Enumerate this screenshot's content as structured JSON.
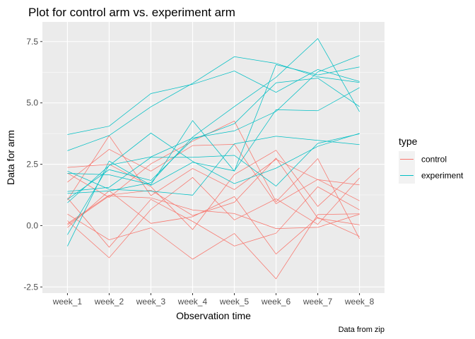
{
  "chart_data": {
    "type": "line",
    "title": "Plot for control arm vs. experiment arm",
    "xlabel": "Observation time",
    "ylabel": "Data for arm",
    "caption": "Data from zip",
    "categories": [
      "week_1",
      "week_2",
      "week_3",
      "week_4",
      "week_5",
      "week_6",
      "week_7",
      "week_8"
    ],
    "ylim": [
      -2.75,
      8.3
    ],
    "yticks": [
      -2.5,
      0.0,
      2.5,
      5.0,
      7.5
    ],
    "ytick_labels": [
      "-2.5",
      "0.0",
      "2.5",
      "5.0",
      "7.5"
    ],
    "grid": true,
    "legend": {
      "title": "type",
      "position": "right",
      "entries": [
        {
          "label": "control",
          "color": "#F8766D"
        },
        {
          "label": "experiment",
          "color": "#00BFC4"
        }
      ]
    },
    "series": [
      {
        "group": "control",
        "values": [
          0.2,
          -1.31,
          0.66,
          1.96,
          0.23,
          1.09,
          0.05,
          1.94
        ]
      },
      {
        "group": "control",
        "values": [
          1.13,
          -0.88,
          1.07,
          0.17,
          -0.83,
          -0.31,
          1.58,
          0.64
        ]
      },
      {
        "group": "control",
        "values": [
          1.77,
          3.11,
          2.22,
          3.26,
          3.31,
          0.89,
          1.88,
          1.01
        ]
      },
      {
        "group": "control",
        "values": [
          1.04,
          3.66,
          1.22,
          2.33,
          1.47,
          2.7,
          1.87,
          1.66
        ]
      },
      {
        "group": "control",
        "values": [
          0.47,
          -0.58,
          -0.09,
          -1.37,
          -0.32,
          -2.17,
          0.45,
          0.48
        ]
      },
      {
        "group": "control",
        "values": [
          2.37,
          2.5,
          1.59,
          -0.16,
          2.08,
          3.07,
          0.78,
          2.35
        ]
      },
      {
        "group": "control",
        "values": [
          0.03,
          1.21,
          1.13,
          0.64,
          0.49,
          -0.12,
          -0.07,
          0.46
        ]
      },
      {
        "group": "control",
        "values": [
          -0.08,
          1.42,
          0.09,
          0.36,
          1.18,
          -1.16,
          0.33,
          -0.44
        ]
      },
      {
        "group": "control",
        "values": [
          0.08,
          1.24,
          1.44,
          0.41,
          0.95,
          2.75,
          0.3,
          0.03
        ]
      },
      {
        "group": "control",
        "values": [
          2.14,
          1.15,
          2.52,
          3.44,
          4.26,
          0.97,
          2.73,
          -0.53
        ]
      },
      {
        "group": "experiment",
        "values": [
          3.71,
          4.05,
          5.38,
          5.76,
          6.3,
          5.43,
          6.36,
          5.87
        ]
      },
      {
        "group": "experiment",
        "values": [
          3.05,
          3.67,
          4.84,
          5.8,
          6.88,
          6.61,
          6.06,
          5.83
        ]
      },
      {
        "group": "experiment",
        "values": [
          -0.84,
          2.63,
          1.64,
          2.58,
          2.23,
          4.72,
          4.68,
          5.62
        ]
      },
      {
        "group": "experiment",
        "values": [
          -0.37,
          2.46,
          2.8,
          3.57,
          3.86,
          4.65,
          6.26,
          6.93
        ]
      },
      {
        "group": "experiment",
        "values": [
          2.13,
          2.07,
          1.67,
          4.28,
          2.22,
          6.56,
          6.14,
          6.46
        ]
      },
      {
        "group": "experiment",
        "values": [
          1.31,
          1.41,
          1.75,
          3.61,
          4.85,
          6.04,
          7.62,
          4.64
        ]
      },
      {
        "group": "experiment",
        "values": [
          0.93,
          2.44,
          3.77,
          2.62,
          1.71,
          2.34,
          3.23,
          3.76
        ]
      },
      {
        "group": "experiment",
        "values": [
          1.07,
          2.28,
          1.84,
          3.51,
          4.15,
          5.82,
          6.01,
          4.85
        ]
      },
      {
        "group": "experiment",
        "values": [
          1.39,
          1.56,
          2.78,
          2.78,
          2.86,
          1.61,
          3.35,
          3.74
        ]
      },
      {
        "group": "experiment",
        "values": [
          2.22,
          1.48,
          1.4,
          1.24,
          3.33,
          3.64,
          3.47,
          3.3
        ]
      }
    ]
  }
}
